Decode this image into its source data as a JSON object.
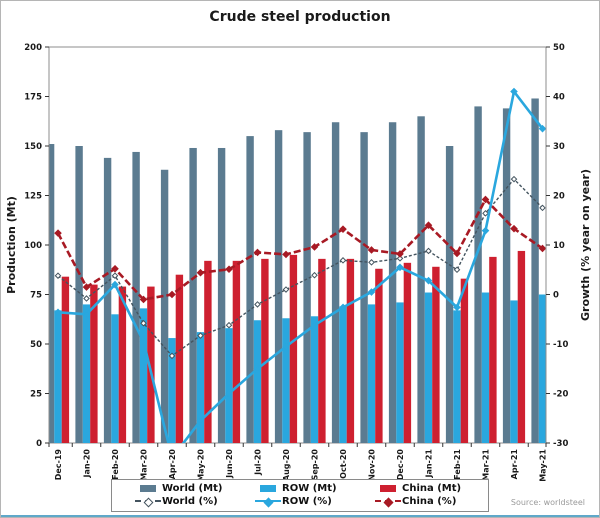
{
  "title": "Crude steel production",
  "source": "Source: worldsteel",
  "y_left": {
    "label": "Production (Mt)",
    "min": 0,
    "max": 200,
    "step": 25
  },
  "y_right": {
    "label": "Growth (% year on year)",
    "min": -30,
    "max": 50,
    "step": 10
  },
  "chart_data": {
    "type": "bar+line combo",
    "categories": [
      "Dec-19",
      "Jan-20",
      "Feb-20",
      "Mar-20",
      "Apr-20",
      "May-20",
      "Jun-20",
      "Jul-20",
      "Aug-20",
      "Sep-20",
      "Oct-20",
      "Nov-20",
      "Dec-20",
      "Jan-21",
      "Feb-21",
      "Mar-21",
      "Apr-21",
      "May-21"
    ],
    "left_axis_range": [
      0,
      200
    ],
    "right_axis_range": [
      -30,
      50
    ],
    "grid": "off",
    "legend_position": "bottom",
    "series": [
      {
        "name": "World (Mt)",
        "type": "bar",
        "axis": "left",
        "color": "#5b7b90",
        "values": [
          151,
          150,
          144,
          147,
          138,
          149,
          149,
          155,
          158,
          157,
          162,
          157,
          162,
          165,
          150,
          170,
          169,
          174
        ]
      },
      {
        "name": "ROW (Mt)",
        "type": "bar",
        "axis": "left",
        "color": "#2aa7de",
        "values": [
          67,
          70,
          65,
          68,
          53,
          56,
          58,
          62,
          63,
          64,
          69,
          70,
          71,
          76,
          67,
          76,
          72,
          75
        ]
      },
      {
        "name": "China (Mt)",
        "type": "bar",
        "axis": "left",
        "color": "#ce2030",
        "values": [
          84,
          80,
          79,
          79,
          85,
          92,
          92,
          93,
          95,
          93,
          93,
          88,
          91,
          89,
          83,
          94,
          97,
          99
        ]
      },
      {
        "name": "World (%)",
        "type": "line",
        "axis": "right",
        "color": "#44545f",
        "dash": "3 2",
        "marker": "open-diamond",
        "width": 1.4,
        "values": [
          3.8,
          -0.8,
          3.8,
          -5.8,
          -12.4,
          -8.3,
          -6.2,
          -2.0,
          1.0,
          3.9,
          6.9,
          6.5,
          7.3,
          8.8,
          5.0,
          16.4,
          23.3,
          17.5
        ]
      },
      {
        "name": "ROW (%)",
        "type": "line",
        "axis": "right",
        "color": "#2aa7de",
        "dash": "",
        "marker": "diamond",
        "width": 2.6,
        "values": [
          -3.6,
          -4.0,
          2.0,
          -9.5,
          -33,
          -25.5,
          -20,
          -15,
          -10.5,
          -6.2,
          -2.6,
          0.5,
          5.5,
          2.8,
          -2.6,
          12.9,
          41.0,
          33.5
        ]
      },
      {
        "name": "China (%)",
        "type": "line",
        "axis": "right",
        "color": "#a81a24",
        "dash": "7 3",
        "marker": "diamond",
        "width": 2.6,
        "values": [
          12.4,
          1.5,
          5.2,
          -1.0,
          0.0,
          4.4,
          5.1,
          8.5,
          8.1,
          9.6,
          13.2,
          9.0,
          8.2,
          14.0,
          8.3,
          19.2,
          13.3,
          9.3
        ]
      }
    ]
  }
}
